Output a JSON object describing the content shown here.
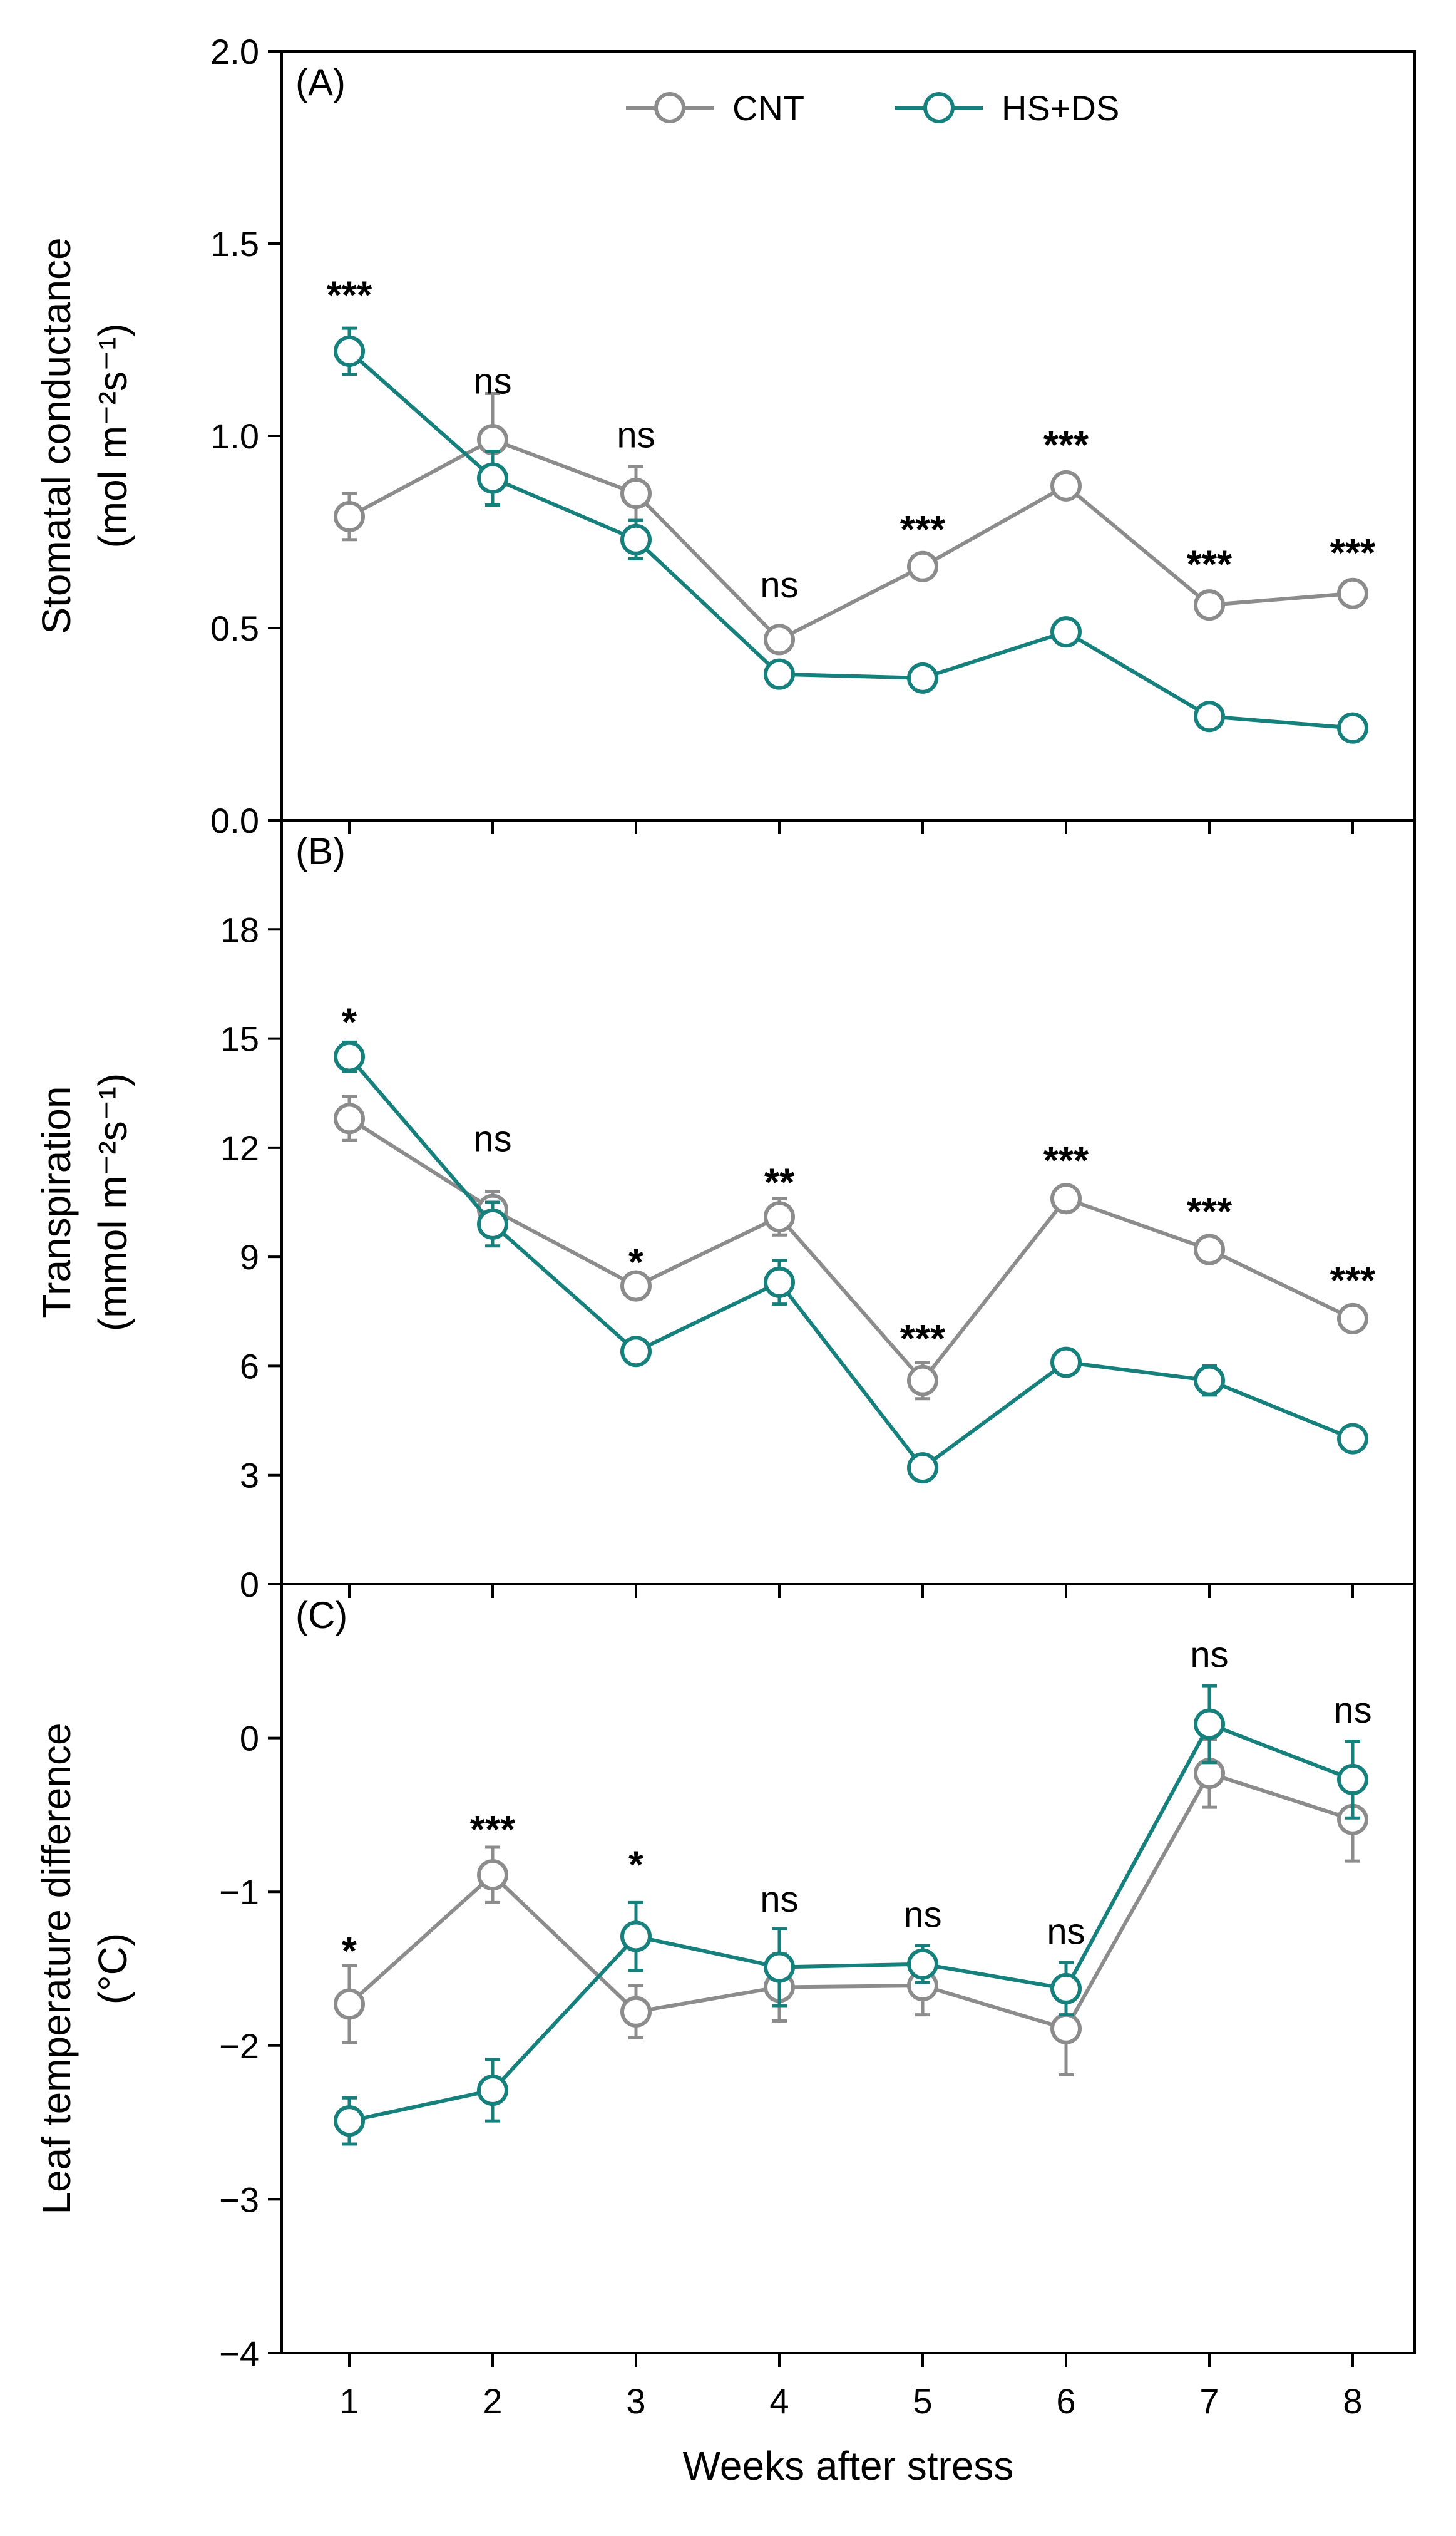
{
  "chart_data": [
    {
      "panel": "(A)",
      "type": "line",
      "x": [
        1,
        2,
        3,
        4,
        5,
        6,
        7,
        8
      ],
      "ylabel": [
        "Stomatal conductance",
        "(mol m⁻²s⁻¹)"
      ],
      "ylim": [
        0.0,
        2.0
      ],
      "yticks": [
        0.0,
        0.5,
        1.0,
        1.5,
        2.0
      ],
      "ytick_labels": [
        "0.0",
        "0.5",
        "1.0",
        "1.5",
        "2.0"
      ],
      "series": [
        {
          "name": "CNT",
          "color": "#8c8c8c",
          "values": [
            0.79,
            0.99,
            0.85,
            0.47,
            0.66,
            0.87,
            0.56,
            0.59
          ],
          "errors": [
            0.06,
            0.12,
            0.07,
            0.03,
            0.03,
            0.03,
            0.02,
            0.03
          ]
        },
        {
          "name": "HS+DS",
          "color": "#16807d",
          "values": [
            1.22,
            0.89,
            0.73,
            0.38,
            0.37,
            0.49,
            0.27,
            0.24
          ],
          "errors": [
            0.06,
            0.07,
            0.05,
            0.02,
            0.02,
            0.02,
            0.02,
            0.02
          ]
        }
      ],
      "significance": [
        "***",
        "ns",
        "ns",
        "ns",
        "***",
        "***",
        "***",
        "***"
      ],
      "significance_y": [
        1.38,
        1.11,
        0.97,
        0.58,
        0.77,
        0.99,
        0.68,
        0.71
      ]
    },
    {
      "panel": "(B)",
      "type": "line",
      "x": [
        1,
        2,
        3,
        4,
        5,
        6,
        7,
        8
      ],
      "ylabel": [
        "Transpiration",
        "(mmol m⁻²s⁻¹)"
      ],
      "ylim": [
        0,
        21
      ],
      "yticks": [
        0,
        3,
        6,
        9,
        12,
        15,
        18
      ],
      "ytick_labels": [
        "0",
        "3",
        "6",
        "9",
        "12",
        "15",
        "18"
      ],
      "series": [
        {
          "name": "CNT",
          "color": "#8c8c8c",
          "values": [
            12.8,
            10.3,
            8.2,
            10.1,
            5.6,
            10.6,
            9.2,
            7.3
          ],
          "errors": [
            0.6,
            0.5,
            0.3,
            0.5,
            0.5,
            0.3,
            0.2,
            0.2
          ]
        },
        {
          "name": "HS+DS",
          "color": "#16807d",
          "values": [
            14.5,
            9.9,
            6.4,
            8.3,
            3.2,
            6.1,
            5.6,
            4.0
          ],
          "errors": [
            0.4,
            0.6,
            0.3,
            0.6,
            0.2,
            0.2,
            0.4,
            0.2
          ]
        }
      ],
      "significance": [
        "*",
        "ns",
        "*",
        "**",
        "***",
        "***",
        "***",
        "***"
      ],
      "significance_y": [
        15.6,
        11.9,
        9.0,
        11.2,
        6.9,
        11.8,
        10.4,
        8.5
      ]
    },
    {
      "panel": "(C)",
      "type": "line",
      "x": [
        1,
        2,
        3,
        4,
        5,
        6,
        7,
        8
      ],
      "xlabel": "Weeks after stress",
      "xticks": [
        1,
        2,
        3,
        4,
        5,
        6,
        7,
        8
      ],
      "xtick_labels": [
        "1",
        "2",
        "3",
        "4",
        "5",
        "6",
        "7",
        "8"
      ],
      "ylabel": [
        "Leaf temperature difference",
        "(°C)"
      ],
      "ylim": [
        -4,
        1
      ],
      "yticks": [
        -4,
        -3,
        -2,
        -1,
        0
      ],
      "ytick_labels": [
        "−4",
        "−3",
        "−2",
        "−1",
        "0"
      ],
      "series": [
        {
          "name": "CNT",
          "color": "#8c8c8c",
          "values": [
            -1.73,
            -0.89,
            -1.78,
            -1.62,
            -1.61,
            -1.89,
            -0.23,
            -0.53
          ],
          "errors": [
            0.25,
            0.18,
            0.17,
            0.22,
            0.19,
            0.3,
            0.22,
            0.27
          ]
        },
        {
          "name": "HS+DS",
          "color": "#16807d",
          "values": [
            -2.49,
            -2.29,
            -1.29,
            -1.49,
            -1.47,
            -1.63,
            0.09,
            -0.27
          ],
          "errors": [
            0.15,
            0.2,
            0.22,
            0.25,
            0.12,
            0.17,
            0.25,
            0.25
          ]
        }
      ],
      "significance": [
        "*",
        "***",
        "*",
        "ns",
        "ns",
        "ns",
        "ns",
        "ns"
      ],
      "significance_y": [
        -1.35,
        -0.56,
        -0.79,
        -1.13,
        -1.23,
        -1.34,
        0.46,
        0.1
      ]
    }
  ],
  "legend": {
    "items": [
      "CNT",
      "HS+DS"
    ],
    "location": "top-center"
  },
  "colors": {
    "cnt": "#8c8c8c",
    "hsds": "#16807d"
  }
}
